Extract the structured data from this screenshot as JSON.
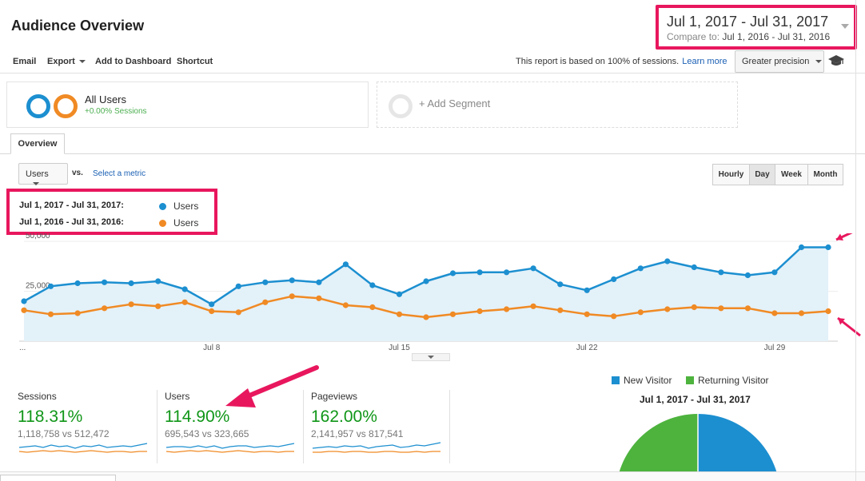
{
  "header": {
    "title": "Audience Overview",
    "date_range": "Jul 1, 2017 - Jul 31, 2017",
    "compare_label": "Compare to:",
    "compare_range": "Jul 1, 2016 - Jul 31, 2016"
  },
  "toolbar": {
    "email": "Email",
    "export": "Export",
    "add_to_dashboard": "Add to Dashboard",
    "shortcut": "Shortcut",
    "note": "This report is based on 100% of sessions.",
    "learn_more": "Learn more",
    "precision": "Greater precision"
  },
  "segments": {
    "all_users": "All Users",
    "all_users_sub": "+0.00% Sessions",
    "add_segment": "+ Add Segment"
  },
  "tabs": {
    "overview": "Overview"
  },
  "chart_controls": {
    "metric": "Users",
    "vs": "vs.",
    "select_metric": "Select a metric",
    "granularity": [
      "Hourly",
      "Day",
      "Week",
      "Month"
    ],
    "active_granularity": "Day"
  },
  "legend": {
    "rows": [
      {
        "range": "Jul 1, 2017 - Jul 31, 2017:",
        "metric": "Users",
        "color": "#1c8fd0"
      },
      {
        "range": "Jul 1, 2016 - Jul 31, 2016:",
        "metric": "Users",
        "color": "#f08a24"
      }
    ]
  },
  "chart_data": {
    "type": "line",
    "y_ticks": [
      "50,000",
      "25,000"
    ],
    "ylim": [
      0,
      50000
    ],
    "x_tick_labels": [
      "...",
      "Jul 8",
      "Jul 15",
      "Jul 22",
      "Jul 29"
    ],
    "series": [
      {
        "name": "Jul 1, 2017 - Jul 31, 2017",
        "color": "#1c8fd0",
        "values": [
          20000,
          27500,
          29000,
          29500,
          29000,
          30000,
          26000,
          18500,
          27500,
          29500,
          30500,
          29500,
          38500,
          28000,
          23500,
          30000,
          34000,
          34500,
          34500,
          36500,
          28500,
          25500,
          31000,
          36500,
          40000,
          37000,
          34500,
          33000,
          34500,
          47000,
          47000
        ]
      },
      {
        "name": "Jul 1, 2016 - Jul 31, 2016",
        "color": "#f08a24",
        "values": [
          15500,
          13500,
          14000,
          16500,
          18500,
          17500,
          19500,
          15000,
          14500,
          19500,
          22500,
          21500,
          18000,
          17000,
          13500,
          12000,
          13500,
          15000,
          16000,
          17500,
          15500,
          13500,
          12500,
          14500,
          16000,
          17000,
          16500,
          16500,
          14000,
          14000,
          15000
        ]
      }
    ]
  },
  "metrics": [
    {
      "label": "Sessions",
      "pct": "118.31%",
      "compare": "1,118,758 vs 512,472"
    },
    {
      "label": "Users",
      "pct": "114.90%",
      "compare": "695,543 vs 323,665"
    },
    {
      "label": "Pageviews",
      "pct": "162.00%",
      "compare": "2,141,957 vs 817,541"
    }
  ],
  "pie": {
    "legend": [
      {
        "label": "New Visitor",
        "color": "#1c8fd0"
      },
      {
        "label": "Returning Visitor",
        "color": "#4db33d"
      }
    ],
    "title": "Jul 1, 2017 - Jul 31, 2017"
  },
  "colors": {
    "highlight": "#e8175d",
    "positive": "#109618",
    "link": "#1a5fb4"
  }
}
